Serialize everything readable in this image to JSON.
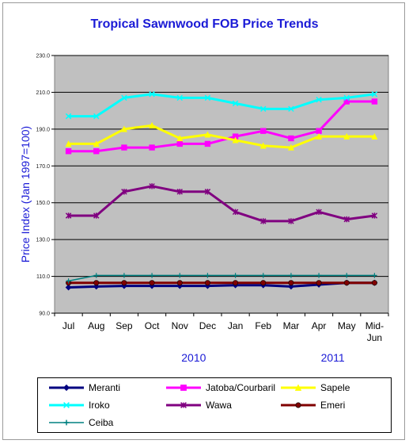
{
  "chart_data": {
    "type": "line",
    "title": "Tropical Sawnwood FOB Price Trends",
    "ylabel": "Price Index  (Jan 1997=100)",
    "xlabel": "",
    "ylim": [
      90,
      230
    ],
    "yticks": [
      "90.0",
      "110.0",
      "130.0",
      "150.0",
      "170.0",
      "190.0",
      "210.0",
      "230.0"
    ],
    "ytick_values": [
      90,
      110,
      130,
      150,
      170,
      190,
      210,
      230
    ],
    "categories": [
      "Jul",
      "Aug",
      "Sep",
      "Oct",
      "Nov",
      "Dec",
      "Jan",
      "Feb",
      "Mar",
      "Apr",
      "May",
      "Mid-Jun"
    ],
    "category_lines": [
      [
        "Jul"
      ],
      [
        "Aug"
      ],
      [
        "Sep"
      ],
      [
        "Oct"
      ],
      [
        "Nov"
      ],
      [
        "Dec"
      ],
      [
        "Jan"
      ],
      [
        "Feb"
      ],
      [
        "Mar"
      ],
      [
        "Apr"
      ],
      [
        "May"
      ],
      [
        "Mid-",
        "Jun"
      ]
    ],
    "year_labels": [
      {
        "text": "2010",
        "at_category": 4.5
      },
      {
        "text": "2011",
        "at_category": 9.5
      }
    ],
    "grid": "horizontal",
    "legend_position": "bottom",
    "series": [
      {
        "name": "Meranti",
        "color": "#000080",
        "marker": "diamond",
        "values": [
          104,
          104.5,
          104.8,
          104.8,
          104.8,
          104.8,
          105.2,
          105.2,
          104.5,
          105.5,
          106.5,
          106.5
        ]
      },
      {
        "name": "Jatoba/Courbaril",
        "color": "#ff00ff",
        "marker": "square",
        "values": [
          178,
          178,
          180,
          180,
          182,
          182,
          186,
          189,
          185,
          189,
          205,
          205
        ]
      },
      {
        "name": "Sapele",
        "color": "#ffff00",
        "marker": "triangle",
        "values": [
          182,
          182,
          190,
          192,
          185,
          187,
          184,
          181,
          180,
          186,
          186,
          186
        ]
      },
      {
        "name": "Iroko",
        "color": "#00ffff",
        "marker": "x",
        "values": [
          197,
          197,
          207,
          209,
          207,
          207,
          204,
          201,
          201,
          206,
          207,
          209
        ]
      },
      {
        "name": "Wawa",
        "color": "#800080",
        "marker": "star",
        "values": [
          143,
          143,
          156,
          159,
          156,
          156,
          145,
          140,
          140,
          145,
          141,
          143
        ]
      },
      {
        "name": "Emeri",
        "color": "#800000",
        "marker": "circle",
        "values": [
          106.5,
          106.5,
          106.5,
          106.5,
          106.5,
          106.5,
          106.5,
          106.5,
          106.5,
          106.5,
          106.5,
          106.5
        ]
      },
      {
        "name": "Ceiba",
        "color": "#008080",
        "marker": "plus",
        "values": [
          107.5,
          110.5,
          110.5,
          110.5,
          110.5,
          110.5,
          110.5,
          110.5,
          110.5,
          110.5,
          110.5,
          110.5
        ]
      }
    ]
  }
}
